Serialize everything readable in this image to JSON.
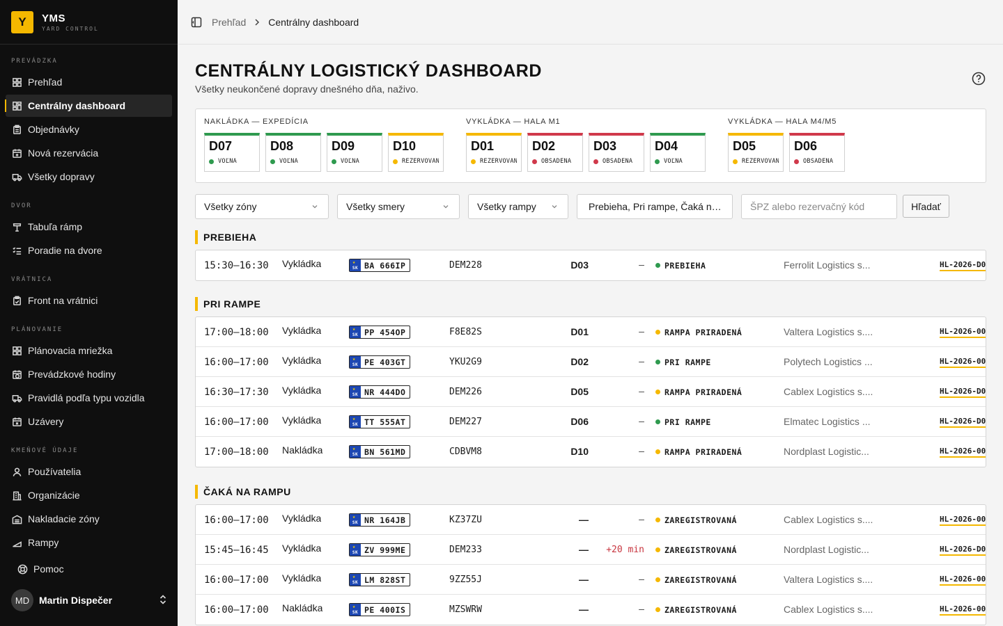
{
  "brand": {
    "logo": "Y",
    "name": "YMS",
    "subtitle": "YARD CONTROL"
  },
  "sidebar": {
    "sections": [
      {
        "heading": "PREVÁDZKA",
        "items": [
          {
            "label": "Prehľad",
            "icon": "grid-icon",
            "active": false
          },
          {
            "label": "Centrálny dashboard",
            "icon": "dashboard-icon",
            "active": true
          },
          {
            "label": "Objednávky",
            "icon": "clipboard-icon",
            "active": false
          },
          {
            "label": "Nová rezervácia",
            "icon": "calendar-plus-icon",
            "active": false
          },
          {
            "label": "Všetky dopravy",
            "icon": "truck-icon",
            "active": false
          }
        ]
      },
      {
        "heading": "DVOR",
        "items": [
          {
            "label": "Tabuľa rámp",
            "icon": "dock-board-icon",
            "active": false
          },
          {
            "label": "Poradie na dvore",
            "icon": "list-check-icon",
            "active": false
          }
        ]
      },
      {
        "heading": "VRÁTNICA",
        "items": [
          {
            "label": "Front na vrátnici",
            "icon": "clipboard-check-icon",
            "active": false
          }
        ]
      },
      {
        "heading": "PLÁNOVANIE",
        "items": [
          {
            "label": "Plánovacia mriežka",
            "icon": "grid-icon",
            "active": false
          },
          {
            "label": "Prevádzkové hodiny",
            "icon": "calendar-clock-icon",
            "active": false
          },
          {
            "label": "Pravidlá podľa typu vozidla",
            "icon": "truck-icon",
            "active": false
          },
          {
            "label": "Uzávery",
            "icon": "calendar-x-icon",
            "active": false
          }
        ]
      },
      {
        "heading": "KMEŇOVÉ ÚDAJE",
        "items": [
          {
            "label": "Používatelia",
            "icon": "user-icon",
            "active": false
          },
          {
            "label": "Organizácie",
            "icon": "building-icon",
            "active": false
          },
          {
            "label": "Nakladacie zóny",
            "icon": "warehouse-icon",
            "active": false
          },
          {
            "label": "Rampy",
            "icon": "ramp-icon",
            "active": false
          }
        ]
      }
    ],
    "help_label": "Pomoc",
    "user": {
      "initials": "MD",
      "name": "Martin Dispečer"
    }
  },
  "breadcrumb": {
    "parent": "Prehľad",
    "current": "Centrálny dashboard"
  },
  "page": {
    "title": "Centrálny logistický dashboard",
    "subtitle": "Všetky neukončené dopravy dnešného dňa, naživo."
  },
  "dock_zones": [
    {
      "label": "NAKLÁDKA — EXPEDÍCIA",
      "docks": [
        {
          "name": "D07",
          "status": "VOĽNÁ",
          "state": "free"
        },
        {
          "name": "D08",
          "status": "VOĽNÁ",
          "state": "free"
        },
        {
          "name": "D09",
          "status": "VOĽNÁ",
          "state": "free"
        },
        {
          "name": "D10",
          "status": "REZERVOVANÁ",
          "state": "reserved"
        }
      ]
    },
    {
      "label": "VYKLÁDKA — HALA M1",
      "docks": [
        {
          "name": "D01",
          "status": "REZERVOVANÁ",
          "state": "reserved"
        },
        {
          "name": "D02",
          "status": "OBSADENÁ",
          "state": "occupied"
        },
        {
          "name": "D03",
          "status": "OBSADENÁ",
          "state": "occupied"
        },
        {
          "name": "D04",
          "status": "VOĽNÁ",
          "state": "free"
        }
      ]
    },
    {
      "label": "VYKLÁDKA — HALA M4/M5",
      "docks": [
        {
          "name": "D05",
          "status": "REZERVOVANÁ",
          "state": "reserved"
        },
        {
          "name": "D06",
          "status": "OBSADENÁ",
          "state": "occupied"
        }
      ]
    }
  ],
  "filters": {
    "zone": "Všetky zóny",
    "direction": "Všetky smery",
    "ramp": "Všetky rampy",
    "status": "Prebieha, Pri rampe, Čaká n…",
    "search_placeholder": "ŠPZ alebo rezervačný kód",
    "search_button": "Hľadať"
  },
  "groups": [
    {
      "title": "Prebieha",
      "rows": [
        {
          "time": "15:30–16:30",
          "direction": "Vykládka",
          "country": "SK",
          "plate": "BA 666IP",
          "ref": "DEM228",
          "dock": "D03",
          "delay": "—",
          "late": false,
          "status": "PREBIEHA",
          "status_color": "green",
          "carrier": "Ferrolit Logistics s...",
          "code": "HL-2026-D0"
        }
      ]
    },
    {
      "title": "Pri rampe",
      "rows": [
        {
          "time": "17:00–18:00",
          "direction": "Vykládka",
          "country": "SK",
          "plate": "PP 454OP",
          "ref": "F8E82S",
          "dock": "D01",
          "delay": "—",
          "late": false,
          "status": "RAMPA PRIRADENÁ",
          "status_color": "yellow",
          "carrier": "Valtera Logistics s....",
          "code": "HL-2026-00"
        },
        {
          "time": "16:00–17:00",
          "direction": "Vykládka",
          "country": "SK",
          "plate": "PE 403GT",
          "ref": "YKU2G9",
          "dock": "D02",
          "delay": "—",
          "late": false,
          "status": "PRI RAMPE",
          "status_color": "green",
          "carrier": "Polytech Logistics ...",
          "code": "HL-2026-00"
        },
        {
          "time": "16:30–17:30",
          "direction": "Vykládka",
          "country": "SK",
          "plate": "NR 444DO",
          "ref": "DEM226",
          "dock": "D05",
          "delay": "—",
          "late": false,
          "status": "RAMPA PRIRADENÁ",
          "status_color": "yellow",
          "carrier": "Cablex Logistics s....",
          "code": "HL-2026-D0"
        },
        {
          "time": "16:00–17:00",
          "direction": "Vykládka",
          "country": "SK",
          "plate": "TT 555AT",
          "ref": "DEM227",
          "dock": "D06",
          "delay": "—",
          "late": false,
          "status": "PRI RAMPE",
          "status_color": "green",
          "carrier": "Elmatec Logistics ...",
          "code": "HL-2026-D0"
        },
        {
          "time": "17:00–18:00",
          "direction": "Nakládka",
          "country": "SK",
          "plate": "BN 561MD",
          "ref": "CDBVM8",
          "dock": "D10",
          "delay": "—",
          "late": false,
          "status": "RAMPA PRIRADENÁ",
          "status_color": "yellow",
          "carrier": "Nordplast Logistic...",
          "code": "HL-2026-00"
        }
      ]
    },
    {
      "title": "Čaká na rampu",
      "rows": [
        {
          "time": "16:00–17:00",
          "direction": "Vykládka",
          "country": "SK",
          "plate": "NR 164JB",
          "ref": "KZ37ZU",
          "dock": "—",
          "delay": "—",
          "late": false,
          "status": "ZAREGISTROVANÁ",
          "status_color": "yellow",
          "carrier": "Cablex Logistics s....",
          "code": "HL-2026-00"
        },
        {
          "time": "15:45–16:45",
          "direction": "Vykládka",
          "country": "SK",
          "plate": "ZV 999ME",
          "ref": "DEM233",
          "dock": "—",
          "delay": "+20 min",
          "late": true,
          "status": "ZAREGISTROVANÁ",
          "status_color": "yellow",
          "carrier": "Nordplast Logistic...",
          "code": "HL-2026-D0"
        },
        {
          "time": "16:00–17:00",
          "direction": "Vykládka",
          "country": "SK",
          "plate": "LM 828ST",
          "ref": "9ZZ55J",
          "dock": "—",
          "delay": "—",
          "late": false,
          "status": "ZAREGISTROVANÁ",
          "status_color": "yellow",
          "carrier": "Valtera Logistics s....",
          "code": "HL-2026-00"
        },
        {
          "time": "16:00–17:00",
          "direction": "Nakládka",
          "country": "SK",
          "plate": "PE 400IS",
          "ref": "MZSWRW",
          "dock": "—",
          "delay": "—",
          "late": false,
          "status": "ZAREGISTROVANÁ",
          "status_color": "yellow",
          "carrier": "Cablex Logistics s....",
          "code": "HL-2026-00"
        }
      ]
    }
  ],
  "colors": {
    "accent": "#f5b800",
    "free": "#2f9a4f",
    "reserved": "#f5b800",
    "occupied": "#d0394b",
    "late": "#c8353f"
  }
}
